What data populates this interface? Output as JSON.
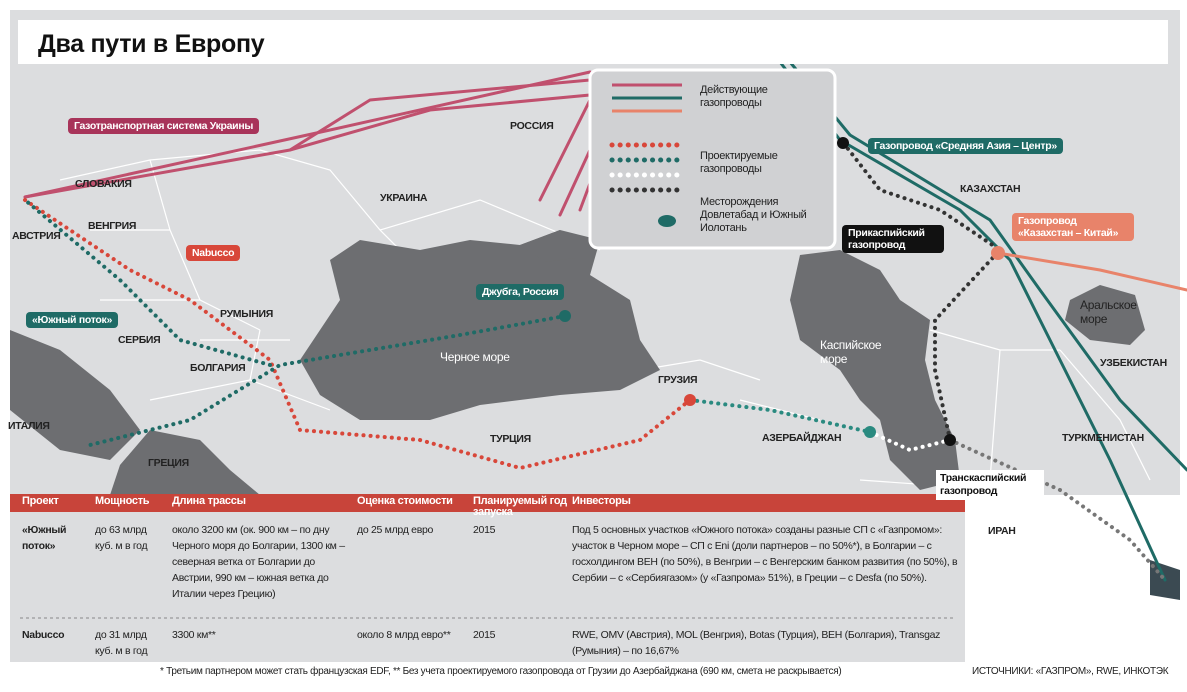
{
  "header": {
    "title": "Два пути в Европу"
  },
  "legend": {
    "existing": "Действующие газопроводы",
    "planned": "Проектируемые газопроводы",
    "fields": "Месторождения Довлетабад и Южный Иолотань"
  },
  "map_labels": [
    "СЛОВАКИЯ",
    "АВСТРИЯ",
    "ВЕНГРИЯ",
    "УКРАИНА",
    "РОССИЯ",
    "РУМЫНИЯ",
    "СЕРБИЯ",
    "БОЛГАРИЯ",
    "ИТАЛИЯ",
    "ГРЕЦИЯ",
    "ТУРЦИЯ",
    "ГРУЗИЯ",
    "АЗЕРБАЙДЖАН",
    "КАЗАХСТАН",
    "УЗБЕКИСТАН",
    "ТУРКМЕНИСТАН",
    "ИРАН",
    "Черное море",
    "Каспийское море",
    "Аральское море"
  ],
  "callouts": [
    "Газотранспортная система Украины",
    "Nabucco",
    "«Южный поток»",
    "Джубга, Россия",
    "Газопровод «Средняя Азия – Центр»",
    "Прикаспийский газопровод",
    "Газопровод «Казахстан – Китай»",
    "Транскаспийский газопровод"
  ],
  "table": {
    "headers": [
      "Проект",
      "Мощность",
      "Длина трассы",
      "Оценка стоимости",
      "Планируемый год запуска",
      "Инвесторы"
    ],
    "rows": [
      [
        "«Южный поток»",
        "до 63 млрд куб. м в год",
        "около 3200 км (ок. 900 км – по дну Черного моря до Болгарии, 1300 км – северная ветка от Болгарии до Австрии, 990 км – южная ветка до Италии через Грецию)",
        "до 25 млрд евро",
        "2015",
        "Под 5 основных участков «Южного потока» созданы разные СП с «Газпромом»: участок в Черном море – СП с Eni (доли партнеров – по 50%*), в Болгарии – с госхолдингом BEH (по 50%), в Венгрии – с Венгерским банком развития (по 50%), в Сербии – с «Сербиягазом» (у «Газпрома» 51%), в Греции – с Desfa (по 50%)."
      ],
      [
        "Nabucco",
        "до 31 млрд куб. м в год",
        "3300 км**",
        "около 8 млрд евро**",
        "2015",
        "RWE, OMV (Австрия), MOL (Венгрия), Botas (Турция), BEH (Болгария), Transgaz (Румыния) – по 16,67%"
      ]
    ]
  },
  "footnote": "* Третьим партнером может стать французская EDF, ** Без учета проектируемого газопровода от Грузии до Азербайджана (690 км, смета не раскрывается)",
  "sources": "ИСТОЧНИКИ: «ГАЗПРОМ», RWE, ИНКОТЭК"
}
